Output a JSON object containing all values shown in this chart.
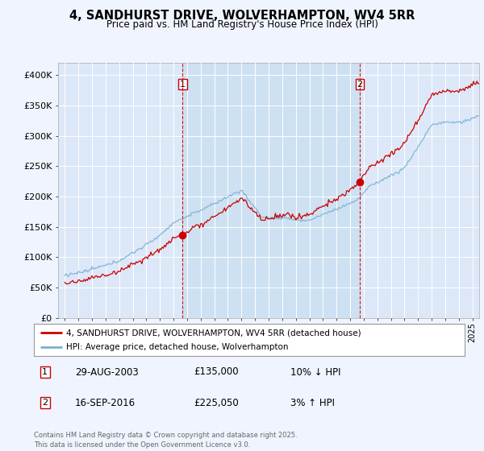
{
  "title": "4, SANDHURST DRIVE, WOLVERHAMPTON, WV4 5RR",
  "subtitle": "Price paid vs. HM Land Registry's House Price Index (HPI)",
  "background_color": "#f0f4ff",
  "plot_bg_color": "#dce8f8",
  "legend_entry1": "4, SANDHURST DRIVE, WOLVERHAMPTON, WV4 5RR (detached house)",
  "legend_entry2": "HPI: Average price, detached house, Wolverhampton",
  "transaction1_date": "29-AUG-2003",
  "transaction1_price": "£135,000",
  "transaction1_hpi": "10% ↓ HPI",
  "transaction2_date": "16-SEP-2016",
  "transaction2_price": "£225,050",
  "transaction2_hpi": "3% ↑ HPI",
  "footer": "Contains HM Land Registry data © Crown copyright and database right 2025.\nThis data is licensed under the Open Government Licence v3.0.",
  "vline1_x": 2003.667,
  "vline2_x": 2016.708,
  "ylim_min": 0,
  "ylim_max": 420000,
  "xlim_min": 1994.5,
  "xlim_max": 2025.5,
  "property_color": "#cc0000",
  "hpi_color": "#7ab0d4",
  "vline_color": "#cc0000",
  "shade_color": "#c8dff0",
  "dot_color": "#cc0000"
}
